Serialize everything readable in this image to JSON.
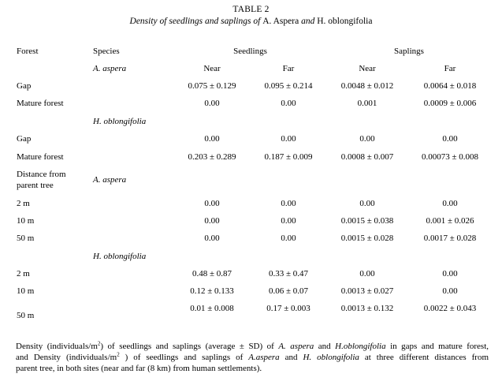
{
  "table_number": "TABLE 2",
  "title": {
    "p1": "Density of seedlings and saplings of ",
    "p2": "A. Aspera",
    "p3": " and ",
    "p4": "H. oblongifolia"
  },
  "headers": {
    "forest": "Forest",
    "species": "Species",
    "seedlings": "Seedlings",
    "saplings": "Saplings",
    "near": "Near",
    "far": "Far"
  },
  "species": {
    "aspera": "A. aspera",
    "oblongifolia": "H. oblongifolia"
  },
  "section_forest": {
    "aspera": [
      {
        "label": "Gap",
        "seed_near": "0.075 ± 0.129",
        "seed_far": "0.095 ± 0.214",
        "sap_near": "0.0048 ± 0.012",
        "sap_far": "0.0064 ± 0.018"
      },
      {
        "label": "Mature forest",
        "seed_near": "0.00",
        "seed_far": "0.00",
        "sap_near": "0.001",
        "sap_far": "0.0009 ± 0.006"
      }
    ],
    "oblongifolia": [
      {
        "label": "Gap",
        "seed_near": "0.00",
        "seed_far": "0.00",
        "sap_near": "0.00",
        "sap_far": "0.00"
      },
      {
        "label": "Mature forest",
        "seed_near": "0.203 ± 0.289",
        "seed_far": "0.187 ± 0.009",
        "sap_near": "0.0008 ± 0.007",
        "sap_far": "0.00073 ± 0.008"
      }
    ]
  },
  "distance_label_1": "Distance from",
  "distance_label_2": "parent tree",
  "section_distance": {
    "aspera": [
      {
        "label": "2 m",
        "seed_near": "0.00",
        "seed_far": "0.00",
        "sap_near": "0.00",
        "sap_far": "0.00"
      },
      {
        "label": "10 m",
        "seed_near": "0.00",
        "seed_far": "0.00",
        "sap_near": "0.0015 ± 0.038",
        "sap_far": "0.001 ± 0.026"
      },
      {
        "label": "50 m",
        "seed_near": "0.00",
        "seed_far": "0.00",
        "sap_near": "0.0015 ± 0.028",
        "sap_far": "0.0017 ± 0.028"
      }
    ],
    "oblongifolia": [
      {
        "label": "2 m",
        "seed_near": "0.48 ± 0.87",
        "seed_far": "0.33 ± 0.47",
        "sap_near": "0.00",
        "sap_far": "0.00"
      },
      {
        "label": "10 m",
        "seed_near": "0.12 ± 0.133",
        "seed_far": "0.06 ± 0.07",
        "sap_near": "0.0013 ± 0.027",
        "sap_far": "0.00"
      },
      {
        "label": "50 m",
        "seed_near": "0.01 ± 0.008",
        "seed_far": "0.17 ± 0.003",
        "sap_near": "0.0013 ± 0.132",
        "sap_far": "0.0022 ± 0.043"
      }
    ]
  },
  "caption": {
    "l1a": "Density (individuals/m",
    "l1sup": "2",
    "l1b": ") of seedlings and saplings (average ± SD) of ",
    "l1c": "A. aspera",
    "l1d": " and ",
    "l1e": "H.oblongifolia",
    "l1f": " in gaps and mature forest,",
    "l2a": "and Density (individuals/m",
    "l2sup": "2",
    "l2b": " ) of seedlings and saplings of ",
    "l2c": "A.aspera",
    "l2d": " and ",
    "l2e": "H. oblongifolia",
    "l2f": " at three different distances from",
    "l3": "parent tree, in both sites (near and far (8 km) from human settlements)."
  }
}
